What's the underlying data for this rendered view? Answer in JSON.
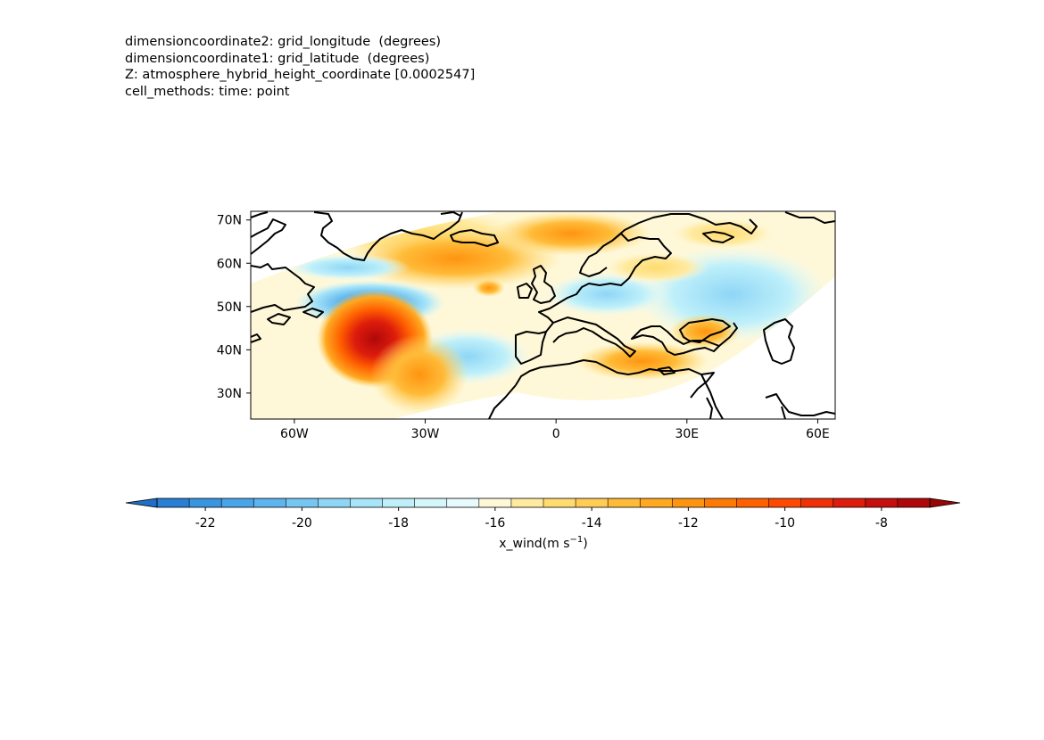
{
  "header": {
    "lines": [
      "dimensioncoordinate2: grid_longitude  (degrees)",
      "dimensioncoordinate1: grid_latitude  (degrees)",
      "Z: atmosphere_hybrid_height_coordinate [0.0002547]",
      "cell_methods: time: point"
    ]
  },
  "map": {
    "projection": "rotated-pole lat/lon",
    "lon_range": [
      -70,
      64
    ],
    "lat_range": [
      24,
      72
    ],
    "xticks": [
      {
        "value": -60,
        "label": "60W"
      },
      {
        "value": -30,
        "label": "30W"
      },
      {
        "value": 0,
        "label": "0"
      },
      {
        "value": 30,
        "label": "30E"
      },
      {
        "value": 60,
        "label": "60E"
      }
    ],
    "yticks": [
      {
        "value": 30,
        "label": "30N"
      },
      {
        "value": 40,
        "label": "40N"
      },
      {
        "value": 50,
        "label": "50N"
      },
      {
        "value": 60,
        "label": "60N"
      },
      {
        "value": 70,
        "label": "70N"
      }
    ],
    "coastlines": "black",
    "features": [
      {
        "name": "strong positive jet",
        "lon": -45,
        "lat": 45,
        "value": -8
      },
      {
        "name": "negative anomaly",
        "lon": -45,
        "lat": 50,
        "value": -22
      },
      {
        "name": "orange band",
        "lon": -25,
        "lat": 60,
        "value": -12
      },
      {
        "name": "blue patch",
        "lon": -20,
        "lat": 38,
        "value": -18
      },
      {
        "name": "black sea orange",
        "lon": 35,
        "lat": 43,
        "value": -13
      }
    ]
  },
  "colorbar": {
    "label": "x_wind(m s",
    "label_exp": "−1",
    "label_tail": ")",
    "levels": [
      -23,
      -22.5,
      -22,
      -21.5,
      -21,
      -20.5,
      -20,
      -19.5,
      -19,
      -18.5,
      -18,
      -17.5,
      -17,
      -16.5,
      -16,
      -15.5,
      -15,
      -14.5,
      -14,
      -13.5,
      -13,
      -12.5,
      -12,
      -11.5,
      -11,
      -10.5,
      -10,
      -9.5,
      -9,
      -8.5,
      -8,
      -7.5,
      -7
    ],
    "extend": "both",
    "ticks": [
      {
        "value": -22,
        "label": "-22"
      },
      {
        "value": -20,
        "label": "-20"
      },
      {
        "value": -18,
        "label": "-18"
      },
      {
        "value": -16,
        "label": "-16"
      },
      {
        "value": -14,
        "label": "-14"
      },
      {
        "value": -12,
        "label": "-12"
      },
      {
        "value": -10,
        "label": "-10"
      },
      {
        "value": -8,
        "label": "-8"
      }
    ],
    "colors": [
      "#2a7fd4",
      "#3a95e0",
      "#4aa4e8",
      "#5db4ee",
      "#76c6f2",
      "#8fd6f6",
      "#a8e5f8",
      "#bff0fa",
      "#d4f7fb",
      "#e7fbfc",
      "#fff8d8",
      "#ffeaa0",
      "#ffdb70",
      "#ffcc55",
      "#ffbb38",
      "#ffa820",
      "#ff9410",
      "#ff7a05",
      "#ff6000",
      "#ff4800",
      "#f03008",
      "#dd1c0c",
      "#c60e0e",
      "#b0080a"
    ],
    "under_color": "#1f6fc6",
    "over_color": "#9a0606"
  }
}
